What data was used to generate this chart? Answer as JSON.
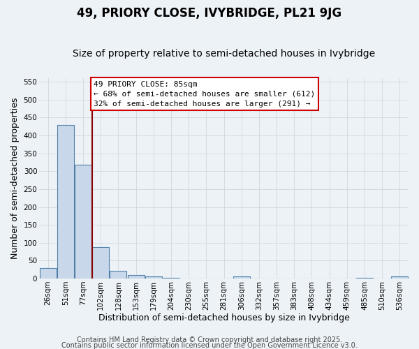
{
  "title": "49, PRIORY CLOSE, IVYBRIDGE, PL21 9JG",
  "subtitle": "Size of property relative to semi-detached houses in Ivybridge",
  "xlabel": "Distribution of semi-detached houses by size in Ivybridge",
  "ylabel": "Number of semi-detached properties",
  "footnote1": "Contains HM Land Registry data © Crown copyright and database right 2025.",
  "footnote2": "Contains public sector information licensed under the Open Government Licence v3.0.",
  "categories": [
    "26sqm",
    "51sqm",
    "77sqm",
    "102sqm",
    "128sqm",
    "153sqm",
    "179sqm",
    "204sqm",
    "230sqm",
    "255sqm",
    "281sqm",
    "306sqm",
    "332sqm",
    "357sqm",
    "383sqm",
    "408sqm",
    "434sqm",
    "459sqm",
    "485sqm",
    "510sqm",
    "536sqm"
  ],
  "values": [
    30,
    430,
    318,
    88,
    22,
    10,
    5,
    2,
    0,
    0,
    0,
    5,
    0,
    0,
    0,
    0,
    0,
    0,
    2,
    0,
    5
  ],
  "bar_color": "#c8d8ea",
  "bar_edge_color": "#5080a8",
  "bar_edge_width": 0.8,
  "red_line_x": 2.5,
  "red_line_color": "#8b0000",
  "annotation_text": "49 PRIORY CLOSE: 85sqm\n← 68% of semi-detached houses are smaller (612)\n32% of semi-detached houses are larger (291) →",
  "annotation_box_facecolor": "#ffffff",
  "annotation_box_edgecolor": "#cc0000",
  "ylim": [
    0,
    560
  ],
  "yticks": [
    0,
    50,
    100,
    150,
    200,
    250,
    300,
    350,
    400,
    450,
    500,
    550
  ],
  "background_color": "#edf2f7",
  "grid_color": "#d0d8e0",
  "title_fontsize": 12,
  "subtitle_fontsize": 10,
  "axis_label_fontsize": 9,
  "tick_fontsize": 7.5,
  "annotation_fontsize": 8,
  "footnote_fontsize": 7
}
